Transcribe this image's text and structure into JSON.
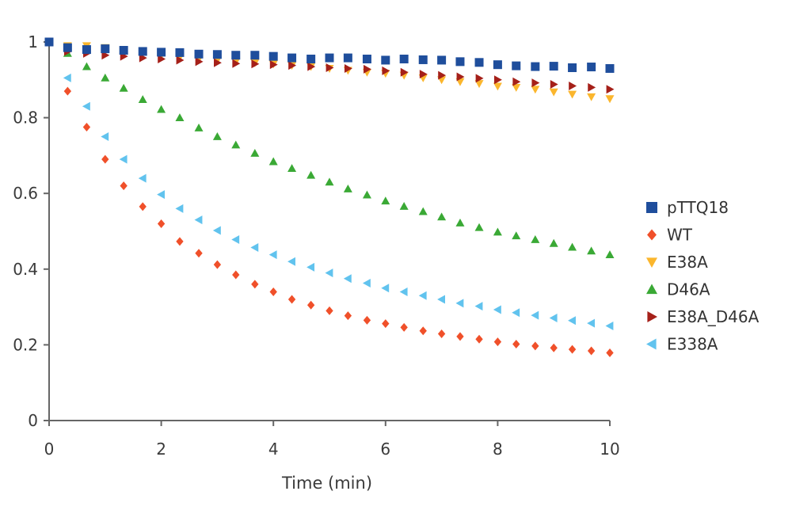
{
  "chart_data": {
    "type": "scatter",
    "title": "",
    "xlabel": "Time (min)",
    "ylabel": "",
    "xlim": [
      0,
      10
    ],
    "ylim": [
      0,
      1
    ],
    "x_ticks": [
      "0",
      "2",
      "4",
      "6",
      "8",
      "10"
    ],
    "y_ticks": [
      "0",
      "0.2",
      "0.4",
      "0.6",
      "0.8",
      "1"
    ],
    "grid": false,
    "legend_position": "right",
    "x": [
      0,
      0.33,
      0.67,
      1,
      1.33,
      1.67,
      2,
      2.33,
      2.67,
      3,
      3.33,
      3.67,
      4,
      4.33,
      4.67,
      5,
      5.33,
      5.67,
      6,
      6.33,
      6.67,
      7,
      7.33,
      7.67,
      8,
      8.33,
      8.67,
      9,
      9.33,
      9.67,
      10
    ],
    "series": [
      {
        "name": "pTTQ18",
        "marker": "square",
        "color": "#1f4e9c",
        "values": [
          1.0,
          0.985,
          0.98,
          0.982,
          0.978,
          0.975,
          0.973,
          0.972,
          0.968,
          0.967,
          0.965,
          0.965,
          0.962,
          0.958,
          0.955,
          0.958,
          0.958,
          0.955,
          0.952,
          0.955,
          0.953,
          0.952,
          0.948,
          0.946,
          0.94,
          0.937,
          0.935,
          0.936,
          0.932,
          0.934,
          0.93
        ]
      },
      {
        "name": "WT",
        "marker": "diamond",
        "color": "#f0502a",
        "values": [
          1.0,
          0.87,
          0.775,
          0.69,
          0.62,
          0.565,
          0.52,
          0.473,
          0.442,
          0.412,
          0.385,
          0.36,
          0.34,
          0.32,
          0.305,
          0.29,
          0.277,
          0.265,
          0.256,
          0.246,
          0.237,
          0.229,
          0.222,
          0.215,
          0.208,
          0.202,
          0.197,
          0.192,
          0.188,
          0.184,
          0.179
        ]
      },
      {
        "name": "E38A",
        "marker": "triangle-down",
        "color": "#fbb62d",
        "values": [
          1.0,
          0.99,
          0.99,
          0.985,
          0.975,
          0.97,
          0.965,
          0.96,
          0.955,
          0.952,
          0.948,
          0.945,
          0.942,
          0.938,
          0.935,
          0.93,
          0.925,
          0.92,
          0.917,
          0.912,
          0.905,
          0.9,
          0.895,
          0.89,
          0.883,
          0.88,
          0.875,
          0.868,
          0.862,
          0.855,
          0.85
        ]
      },
      {
        "name": "D46A",
        "marker": "triangle-up",
        "color": "#3aa935",
        "values": [
          1.0,
          0.97,
          0.935,
          0.905,
          0.878,
          0.848,
          0.822,
          0.8,
          0.773,
          0.75,
          0.728,
          0.706,
          0.684,
          0.666,
          0.648,
          0.63,
          0.612,
          0.596,
          0.58,
          0.566,
          0.552,
          0.538,
          0.522,
          0.51,
          0.498,
          0.488,
          0.478,
          0.468,
          0.458,
          0.448,
          0.438
        ]
      },
      {
        "name": "E38A_D46A",
        "marker": "triangle-right",
        "color": "#a52019",
        "values": [
          1.0,
          0.975,
          0.97,
          0.965,
          0.962,
          0.958,
          0.955,
          0.952,
          0.948,
          0.945,
          0.943,
          0.942,
          0.94,
          0.938,
          0.935,
          0.932,
          0.93,
          0.928,
          0.924,
          0.92,
          0.915,
          0.912,
          0.908,
          0.904,
          0.9,
          0.895,
          0.892,
          0.888,
          0.884,
          0.88,
          0.875
        ]
      },
      {
        "name": "E338A",
        "marker": "triangle-left",
        "color": "#61c3ee",
        "values": [
          1.0,
          0.905,
          0.83,
          0.75,
          0.69,
          0.64,
          0.597,
          0.56,
          0.53,
          0.502,
          0.478,
          0.457,
          0.438,
          0.42,
          0.405,
          0.39,
          0.375,
          0.363,
          0.35,
          0.34,
          0.33,
          0.32,
          0.31,
          0.302,
          0.293,
          0.285,
          0.278,
          0.271,
          0.264,
          0.257,
          0.25
        ]
      }
    ]
  }
}
